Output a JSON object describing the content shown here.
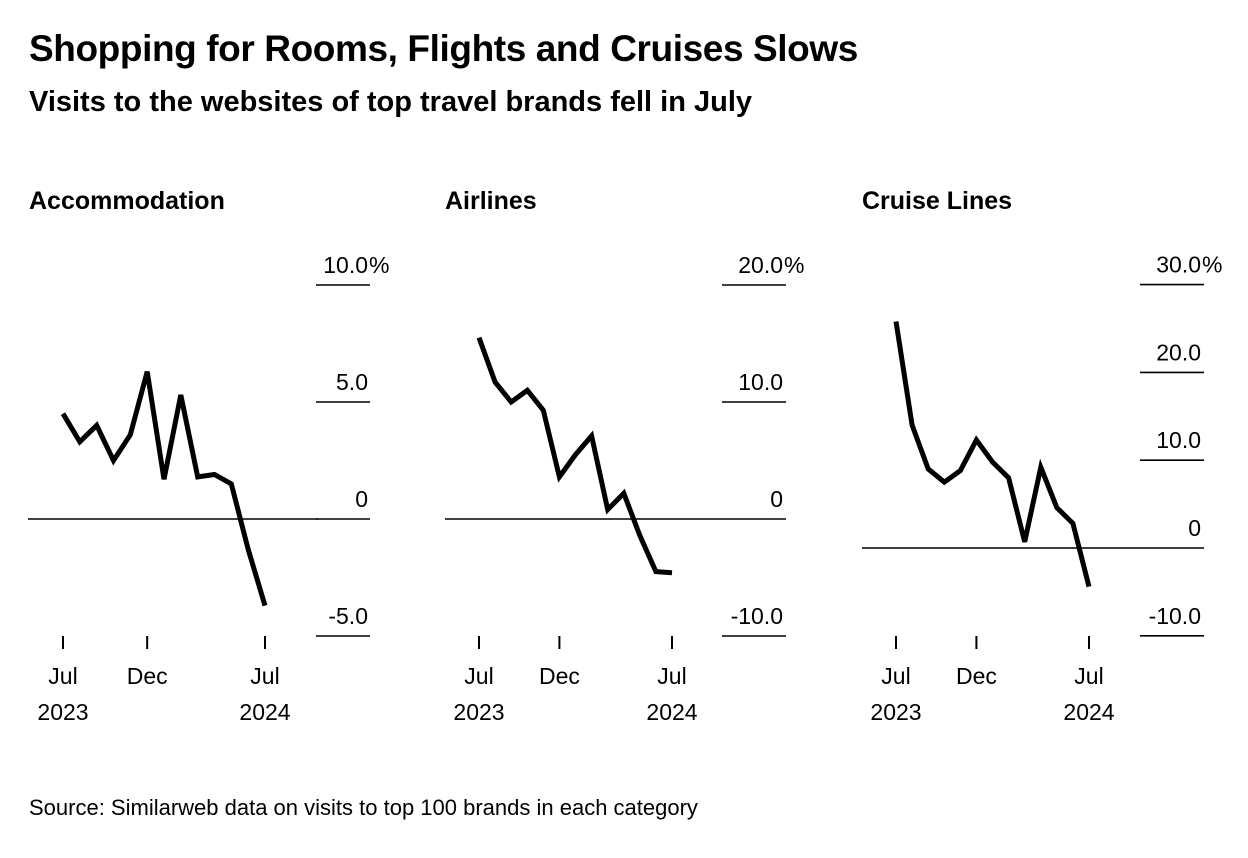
{
  "title": "Shopping for Rooms, Flights and Cruises Slows",
  "subtitle": "Visits to the websites of top travel brands fell in July",
  "source": "Source: Similarweb data on visits to top 100 brands in each category",
  "colors": {
    "line": "#000000",
    "background": "#ffffff"
  },
  "chart_data": [
    {
      "type": "line",
      "title": "Accommodation",
      "x": [
        "2023-07",
        "2023-08",
        "2023-09",
        "2023-10",
        "2023-11",
        "2023-12",
        "2024-01",
        "2024-02",
        "2024-03",
        "2024-04",
        "2024-05",
        "2024-06",
        "2024-07"
      ],
      "values": [
        4.5,
        3.3,
        4.0,
        2.5,
        3.6,
        6.3,
        1.7,
        5.3,
        1.8,
        1.9,
        1.5,
        -1.3,
        -3.7
      ],
      "yticks": [
        10,
        5,
        0,
        -5
      ],
      "ytick_labels": [
        "10.0",
        "5.0",
        "0",
        "-5.0"
      ],
      "unit": "%",
      "ylim": [
        -5,
        10
      ],
      "xticks": [
        "2023-07",
        "2023-12",
        "2024-07"
      ],
      "xtick_labels": [
        [
          "Jul",
          "2023"
        ],
        [
          "Dec",
          ""
        ],
        [
          "Jul",
          "2024"
        ]
      ]
    },
    {
      "type": "line",
      "title": "Airlines",
      "x": [
        "2023-07",
        "2023-08",
        "2023-09",
        "2023-10",
        "2023-11",
        "2023-12",
        "2024-01",
        "2024-02",
        "2024-03",
        "2024-04",
        "2024-05",
        "2024-06",
        "2024-07"
      ],
      "values": [
        15.5,
        11.7,
        10.0,
        11.0,
        9.3,
        3.6,
        5.5,
        7.1,
        0.8,
        2.2,
        -1.4,
        -4.5,
        -4.6
      ],
      "yticks": [
        20,
        10,
        0,
        -10
      ],
      "ytick_labels": [
        "20.0",
        "10.0",
        "0",
        "-10.0"
      ],
      "unit": "%",
      "ylim": [
        -10,
        20
      ],
      "xticks": [
        "2023-07",
        "2023-12",
        "2024-07"
      ],
      "xtick_labels": [
        [
          "Jul",
          "2023"
        ],
        [
          "Dec",
          ""
        ],
        [
          "Jul",
          "2024"
        ]
      ]
    },
    {
      "type": "line",
      "title": "Cruise Lines",
      "x": [
        "2023-07",
        "2023-08",
        "2023-09",
        "2023-10",
        "2023-11",
        "2023-12",
        "2024-01",
        "2024-02",
        "2024-03",
        "2024-04",
        "2024-05",
        "2024-06",
        "2024-07"
      ],
      "values": [
        25.8,
        14.0,
        9.0,
        7.5,
        8.8,
        12.3,
        9.8,
        8.0,
        0.7,
        9.2,
        4.6,
        2.8,
        -4.4
      ],
      "yticks": [
        30,
        20,
        10,
        0,
        -10
      ],
      "ytick_labels": [
        "30.0",
        "20.0",
        "10.0",
        "0",
        "-10.0"
      ],
      "unit": "%",
      "ylim": [
        -10,
        30
      ],
      "xticks": [
        "2023-07",
        "2023-12",
        "2024-07"
      ],
      "xtick_labels": [
        [
          "Jul",
          "2023"
        ],
        [
          "Dec",
          ""
        ],
        [
          "Jul",
          "2024"
        ]
      ]
    }
  ]
}
